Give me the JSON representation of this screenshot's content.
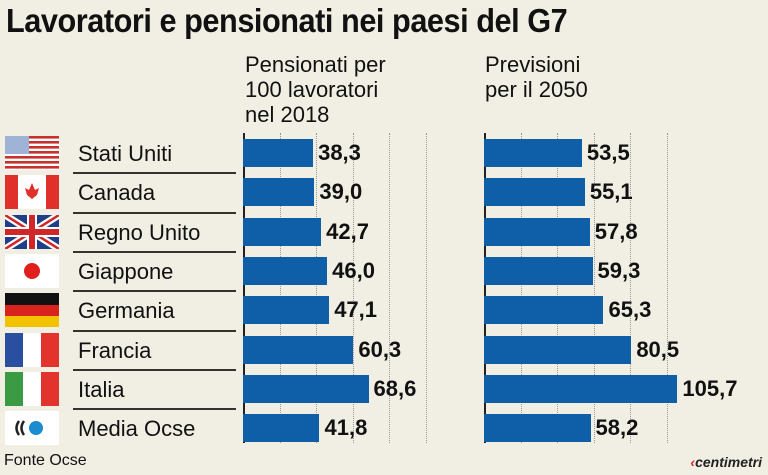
{
  "title": "Lavoratori e pensionati nei paesi del G7",
  "chart_data": {
    "type": "bar",
    "orientation": "horizontal",
    "title": "Lavoratori e pensionati nei paesi del G7",
    "categories": [
      "Stati Uniti",
      "Canada",
      "Regno Unito",
      "Giappone",
      "Germania",
      "Francia",
      "Italia",
      "Media Ocse"
    ],
    "series": [
      {
        "name": "Pensionati per\n100 lavoratori\nnel 2018",
        "values": [
          38.3,
          39.0,
          42.7,
          46.0,
          47.1,
          60.3,
          68.6,
          41.8
        ],
        "labels": [
          "38,3",
          "39,0",
          "42,7",
          "46,0",
          "47,1",
          "60,3",
          "68,6",
          "41,8"
        ]
      },
      {
        "name": "Previsioni\nper il 2050",
        "values": [
          53.5,
          55.1,
          57.8,
          59.3,
          65.3,
          80.5,
          105.7,
          58.2
        ],
        "labels": [
          "53,5",
          "55,1",
          "57,8",
          "59,3",
          "65,3",
          "80,5",
          "105,7",
          "58,2"
        ]
      }
    ],
    "grid": true,
    "bar_color": "#0e5fa8"
  },
  "flags": [
    "us-flag",
    "canada-flag",
    "uk-flag",
    "japan-flag",
    "germany-flag",
    "france-flag",
    "italy-flag",
    "oecd-logo"
  ],
  "footer": {
    "source": "Fonte Ocse",
    "logo_text": "centimetri"
  }
}
